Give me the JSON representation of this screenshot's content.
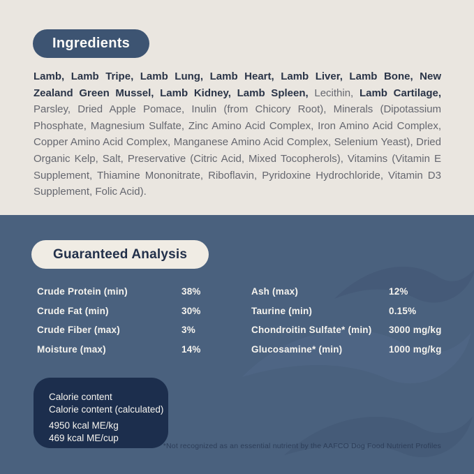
{
  "colors": {
    "cream_background": "#EAE6E0",
    "slate_background": "#4A617E",
    "ingredients_pill": "#3D5472",
    "analysis_pill": "#F0ECE4",
    "calorie_box": "#1C2E4D",
    "bold_text": "#2A3447",
    "regular_text": "#65676F",
    "text_on_dark": "#F6F4EF",
    "footnote_text": "#2C3D58"
  },
  "icons": {
    "decorative": "wave-swoosh"
  },
  "ingredients": {
    "title": "Ingredients",
    "segments": [
      {
        "text": "Lamb, Lamb Tripe, Lamb Lung, Lamb Heart, Lamb Liver, Lamb Bone, New Zealand Green Mussel, Lamb Kidney, Lamb Spleen, ",
        "bold": true
      },
      {
        "text": "Lecithin, ",
        "bold": false
      },
      {
        "text": "Lamb Cartilage, ",
        "bold": true
      },
      {
        "text": "Parsley, Dried Apple Pomace, Inulin (from Chicory Root), Minerals (Dipotassium Phosphate, Magnesium Sulfate, Zinc Amino Acid Complex, Iron Amino Acid Complex, Copper Amino Acid Complex, Manganese Amino Acid Complex, Selenium Yeast), Dried Organic Kelp, Salt, Preservative (Citric Acid, Mixed Tocopherols), Vitamins (Vitamin E Supplement, Thiamine Mononitrate, Riboflavin, Pyridoxine Hydrochloride, Vitamin D3 Supplement, Folic Acid).",
        "bold": false
      }
    ]
  },
  "guaranteed_analysis": {
    "title": "Guaranteed Analysis",
    "left_rows": [
      {
        "label": "Crude Protein (min)",
        "value": "38%"
      },
      {
        "label": "Crude Fat (min)",
        "value": "30%"
      },
      {
        "label": "Crude Fiber (max)",
        "value": "3%"
      },
      {
        "label": "Moisture (max)",
        "value": "14%"
      }
    ],
    "right_rows": [
      {
        "label": "Ash (max)",
        "value": "12%"
      },
      {
        "label": "Taurine (min)",
        "value": "0.15%"
      },
      {
        "label": "Chondroitin Sulfate* (min)",
        "value": "3000 mg/kg"
      },
      {
        "label": "Glucosamine* (min)",
        "value": "1000 mg/kg"
      }
    ]
  },
  "calorie_box": {
    "line1": "Calorie content",
    "line2": "Calorie content (calculated)",
    "line3": "4950 kcal ME/kg",
    "line4": "469 kcal ME/cup"
  },
  "footnote": "*Not recognized as an essential nutrient by the AAFCO Dog Food Nutrient Profiles"
}
